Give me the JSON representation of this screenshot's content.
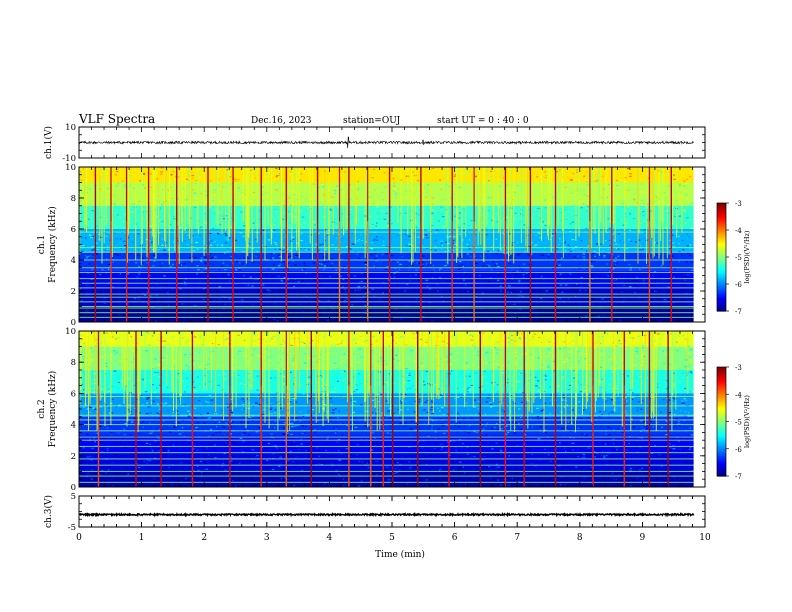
{
  "header": {
    "title": "VLF Spectra",
    "date": "Dec.16, 2023",
    "station": "station=OUJ",
    "start": "start UT =  0 : 40 : 0"
  },
  "colorbar": {
    "label": "log(PSD)(V²/Hz)",
    "ticks": [
      {
        "v": -3,
        "t": "-3"
      },
      {
        "v": -4,
        "t": "-4"
      },
      {
        "v": -5,
        "t": "-5"
      },
      {
        "v": -6,
        "t": "-6"
      },
      {
        "v": -7,
        "t": "-7"
      }
    ]
  },
  "chart_data": [
    {
      "type": "line",
      "ylabel": "ch.1(V)",
      "ylim": [
        -10,
        10
      ],
      "yticks": [
        {
          "v": 10,
          "t": "10"
        },
        {
          "v": -10,
          "t": "-10"
        }
      ],
      "xlim": [
        0,
        9.82
      ],
      "series": [
        {
          "baseline": 0,
          "typical_amplitude": 0.8,
          "peaks": [
            {
              "x": 4.3,
              "y": 3.5
            },
            {
              "x": 5.5,
              "y": 1.6
            }
          ]
        }
      ]
    },
    {
      "type": "heatmap",
      "ylabel": "ch.1\nFrequency (kHz)",
      "ylim": [
        0,
        10
      ],
      "yticks": [
        {
          "v": 0,
          "t": "0"
        },
        {
          "v": 2,
          "t": "2"
        },
        {
          "v": 4,
          "t": "4"
        },
        {
          "v": 6,
          "t": "6"
        },
        {
          "v": 8,
          "t": "8"
        },
        {
          "v": 10,
          "t": "10"
        }
      ],
      "xlim": [
        0,
        9.82
      ],
      "zlim": [
        -7,
        -3
      ],
      "bands": [
        {
          "f": [
            9.0,
            10.0
          ],
          "z": -4.4
        },
        {
          "f": [
            7.5,
            9.0
          ],
          "z": -4.8
        },
        {
          "f": [
            6.0,
            7.5
          ],
          "z": -5.3
        },
        {
          "f": [
            4.5,
            6.0
          ],
          "z": -5.8
        },
        {
          "f": [
            3.3,
            4.5
          ],
          "z": -6.3
        },
        {
          "f": [
            2.2,
            3.3
          ],
          "z": -6.5
        },
        {
          "f": [
            1.0,
            2.2
          ],
          "z": -6.7
        },
        {
          "f": [
            0.0,
            1.0
          ],
          "z": -6.9
        }
      ],
      "lines_khz": [
        0.3,
        0.6,
        0.9,
        1.0,
        1.3,
        1.6,
        1.8,
        2.2,
        2.5,
        2.8,
        3.2,
        3.5,
        4.0,
        4.5,
        4.8,
        5.8
      ],
      "tone_z": -5.0,
      "sferics_min": [
        0.25,
        0.5,
        0.75,
        1.1,
        1.55,
        2.05,
        2.45,
        2.9,
        3.3,
        3.8,
        4.15,
        4.3,
        4.6,
        4.95,
        5.45,
        5.95,
        6.3,
        6.8,
        7.2,
        7.6,
        8.15,
        8.5,
        9.1,
        9.45
      ],
      "sferic_z": -4.0
    },
    {
      "type": "heatmap",
      "ylabel": "ch.2\nFrequency (kHz)",
      "ylim": [
        0,
        10
      ],
      "yticks": [
        {
          "v": 0,
          "t": "0"
        },
        {
          "v": 2,
          "t": "2"
        },
        {
          "v": 4,
          "t": "4"
        },
        {
          "v": 6,
          "t": "6"
        },
        {
          "v": 8,
          "t": "8"
        },
        {
          "v": 10,
          "t": "10"
        }
      ],
      "xlim": [
        0,
        9.82
      ],
      "zlim": [
        -7,
        -3
      ],
      "bands": [
        {
          "f": [
            9.0,
            10.0
          ],
          "z": -4.6
        },
        {
          "f": [
            7.5,
            9.0
          ],
          "z": -5.0
        },
        {
          "f": [
            6.0,
            7.5
          ],
          "z": -5.4
        },
        {
          "f": [
            4.5,
            6.0
          ],
          "z": -5.9
        },
        {
          "f": [
            3.3,
            4.5
          ],
          "z": -6.3
        },
        {
          "f": [
            2.2,
            3.3
          ],
          "z": -6.5
        },
        {
          "f": [
            1.0,
            2.2
          ],
          "z": -6.6
        },
        {
          "f": [
            0.0,
            1.0
          ],
          "z": -6.8
        }
      ],
      "lines_khz": [
        0.3,
        0.7,
        1.0,
        1.4,
        1.8,
        2.2,
        2.6,
        3.0,
        3.2,
        3.6,
        4.0,
        4.3,
        4.6,
        5.2,
        5.8
      ],
      "tone_z": -5.0,
      "sferics_min": [
        0.3,
        0.9,
        1.3,
        1.8,
        2.4,
        2.9,
        3.3,
        3.7,
        4.3,
        4.65,
        4.85,
        5.0,
        5.4,
        5.9,
        6.4,
        6.8,
        7.1,
        7.6,
        8.2,
        8.7,
        9.1,
        9.4
      ],
      "sferic_z": -3.9
    },
    {
      "type": "line",
      "ylabel": "ch.3(V)",
      "ylim": [
        -5,
        5
      ],
      "yticks": [
        {
          "v": 5,
          "t": "5"
        },
        {
          "v": -5,
          "t": "-5"
        }
      ],
      "xlim": [
        0,
        9.82
      ],
      "series": [
        {
          "baseline": -1.0,
          "typical_amplitude": 0.25
        }
      ]
    }
  ],
  "xaxis": {
    "label": "Time (min)",
    "range": [
      0,
      10
    ],
    "ticks": [
      {
        "v": 0,
        "t": "0"
      },
      {
        "v": 1,
        "t": "1"
      },
      {
        "v": 2,
        "t": "2"
      },
      {
        "v": 3,
        "t": "3"
      },
      {
        "v": 4,
        "t": "4"
      },
      {
        "v": 5,
        "t": "5"
      },
      {
        "v": 6,
        "t": "6"
      },
      {
        "v": 7,
        "t": "7"
      },
      {
        "v": 8,
        "t": "8"
      },
      {
        "v": 9,
        "t": "9"
      },
      {
        "v": 10,
        "t": "10"
      }
    ]
  }
}
